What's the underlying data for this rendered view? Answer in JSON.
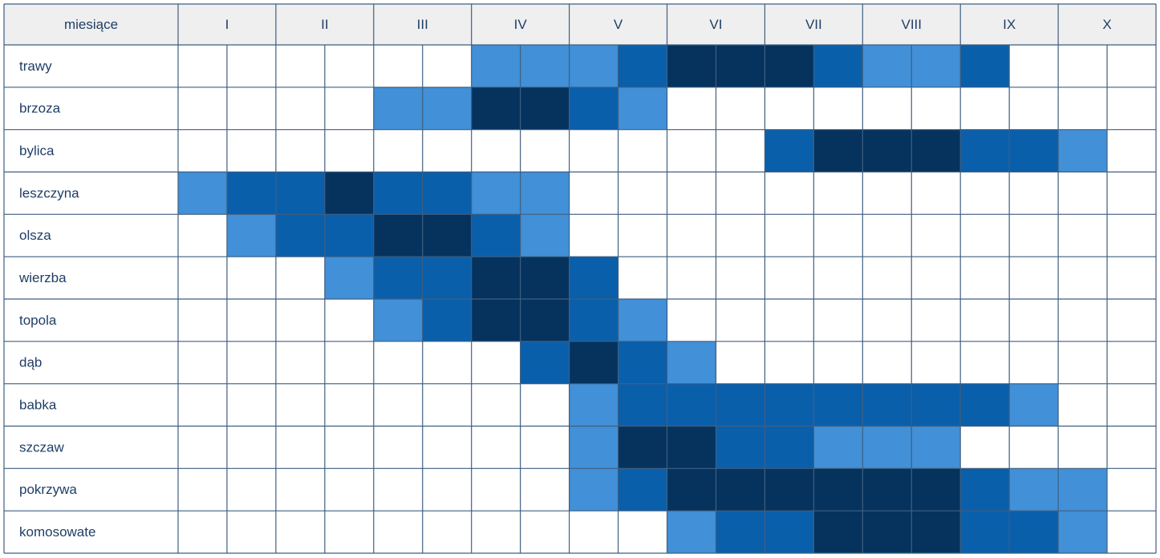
{
  "table": {
    "header": [
      "miesiące",
      "I",
      "II",
      "III",
      "IV",
      "V",
      "VI",
      "VII",
      "VIII",
      "IX",
      "X"
    ],
    "level_colors": [
      "#ffffff",
      "#4190d8",
      "#0a5fab",
      "#05335e"
    ],
    "rows": [
      {
        "label": "trawy",
        "levels": [
          0,
          0,
          0,
          0,
          0,
          0,
          1,
          1,
          1,
          2,
          3,
          3,
          3,
          2,
          1,
          1,
          2,
          0,
          0,
          0
        ]
      },
      {
        "label": "brzoza",
        "levels": [
          0,
          0,
          0,
          0,
          1,
          1,
          3,
          3,
          2,
          1,
          0,
          0,
          0,
          0,
          0,
          0,
          0,
          0,
          0,
          0
        ]
      },
      {
        "label": "bylica",
        "levels": [
          0,
          0,
          0,
          0,
          0,
          0,
          0,
          0,
          0,
          0,
          0,
          0,
          2,
          3,
          3,
          3,
          2,
          2,
          1,
          0
        ]
      },
      {
        "label": "leszczyna",
        "levels": [
          1,
          2,
          2,
          3,
          2,
          2,
          1,
          1,
          0,
          0,
          0,
          0,
          0,
          0,
          0,
          0,
          0,
          0,
          0,
          0
        ]
      },
      {
        "label": "olsza",
        "levels": [
          0,
          1,
          2,
          2,
          3,
          3,
          2,
          1,
          0,
          0,
          0,
          0,
          0,
          0,
          0,
          0,
          0,
          0,
          0,
          0
        ]
      },
      {
        "label": "wierzba",
        "levels": [
          0,
          0,
          0,
          1,
          2,
          2,
          3,
          3,
          2,
          0,
          0,
          0,
          0,
          0,
          0,
          0,
          0,
          0,
          0,
          0
        ]
      },
      {
        "label": "topola",
        "levels": [
          0,
          0,
          0,
          0,
          1,
          2,
          3,
          3,
          2,
          1,
          0,
          0,
          0,
          0,
          0,
          0,
          0,
          0,
          0,
          0
        ]
      },
      {
        "label": "dąb",
        "levels": [
          0,
          0,
          0,
          0,
          0,
          0,
          0,
          2,
          3,
          2,
          1,
          0,
          0,
          0,
          0,
          0,
          0,
          0,
          0,
          0
        ]
      },
      {
        "label": "babka",
        "levels": [
          0,
          0,
          0,
          0,
          0,
          0,
          0,
          0,
          1,
          2,
          2,
          2,
          2,
          2,
          2,
          2,
          2,
          1,
          0,
          0
        ]
      },
      {
        "label": "szczaw",
        "levels": [
          0,
          0,
          0,
          0,
          0,
          0,
          0,
          0,
          1,
          3,
          3,
          2,
          2,
          1,
          1,
          1,
          0,
          0,
          0,
          0
        ]
      },
      {
        "label": "pokrzywa",
        "levels": [
          0,
          0,
          0,
          0,
          0,
          0,
          0,
          0,
          1,
          2,
          3,
          3,
          3,
          3,
          3,
          3,
          2,
          1,
          1,
          0
        ]
      },
      {
        "label": "komosowate",
        "levels": [
          0,
          0,
          0,
          0,
          0,
          0,
          0,
          0,
          0,
          0,
          1,
          2,
          2,
          3,
          3,
          3,
          2,
          2,
          1,
          0
        ]
      }
    ]
  }
}
